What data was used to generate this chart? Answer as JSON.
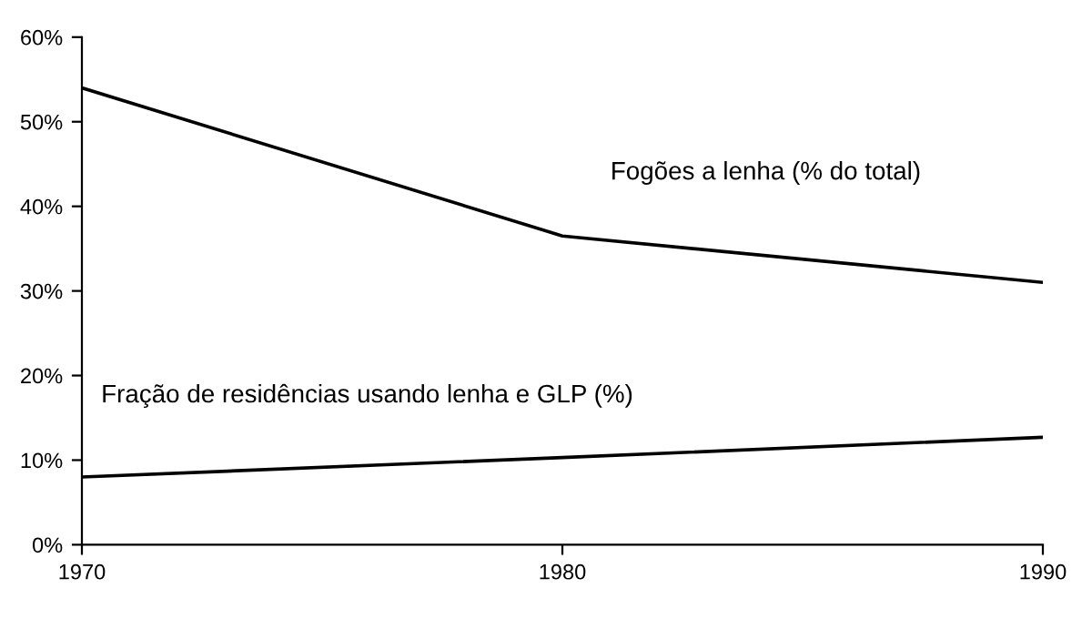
{
  "chart_data": {
    "type": "line",
    "x": [
      1970,
      1980,
      1990
    ],
    "series": [
      {
        "name": "Fogões a lenha (% do total)",
        "color": "#000000",
        "values": [
          54,
          36.5,
          31
        ]
      },
      {
        "name": "Fração de residências usando lenha e GLP (%)",
        "color": "#000000",
        "values": [
          8,
          10.3,
          12.7
        ]
      }
    ],
    "xlim": [
      1970,
      1990
    ],
    "xticks": [
      1970,
      1980,
      1990
    ],
    "ylim": [
      0,
      60
    ],
    "yticks": [
      {
        "value": 0,
        "label": "0%"
      },
      {
        "value": 10,
        "label": "10%"
      },
      {
        "value": 20,
        "label": "20%"
      },
      {
        "value": 30,
        "label": "30%"
      },
      {
        "value": 40,
        "label": "40%"
      },
      {
        "value": 50,
        "label": "50%"
      },
      {
        "value": 60,
        "label": "60%"
      }
    ],
    "grid": false,
    "legend": false,
    "marker": "none",
    "line_style": "solid"
  }
}
